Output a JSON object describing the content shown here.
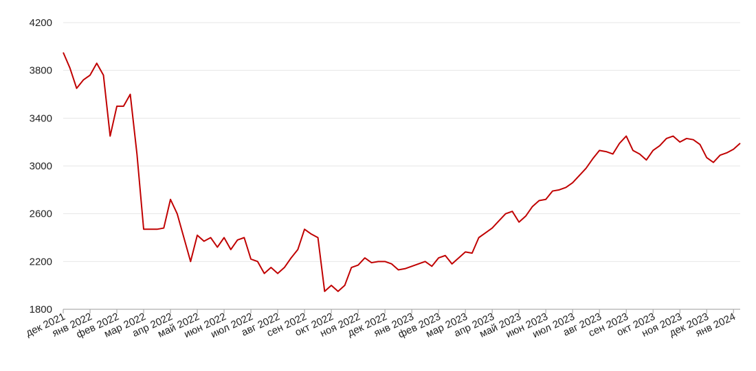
{
  "chart_data": {
    "type": "line",
    "categories": [
      "дек 2021",
      null,
      null,
      null,
      "янв 2022",
      null,
      null,
      null,
      "фев 2022",
      null,
      null,
      null,
      "мар 2022",
      null,
      null,
      null,
      "апр 2022",
      null,
      null,
      null,
      "май 2022",
      null,
      null,
      null,
      "июн 2022",
      null,
      null,
      null,
      "июл 2022",
      null,
      null,
      null,
      "авг 2022",
      null,
      null,
      null,
      "сен 2022",
      null,
      null,
      null,
      "окт 2022",
      null,
      null,
      null,
      "ноя 2022",
      null,
      null,
      null,
      "дек 2022",
      null,
      null,
      null,
      "янв 2023",
      null,
      null,
      null,
      "фев 2023",
      null,
      null,
      null,
      "мар 2023",
      null,
      null,
      null,
      "апр 2023",
      null,
      null,
      null,
      "май 2023",
      null,
      null,
      null,
      "июн 2023",
      null,
      null,
      null,
      "июл 2023",
      null,
      null,
      null,
      "авг 2023",
      null,
      null,
      null,
      "сен 2023",
      null,
      null,
      null,
      "окт 2023",
      null,
      null,
      null,
      "ноя 2023",
      null,
      null,
      null,
      "дек 2023",
      null,
      null,
      null,
      "янв 2024",
      null
    ],
    "series": [
      {
        "color": "#c00000",
        "values": [
          3950,
          3820,
          3650,
          3720,
          3760,
          3860,
          3760,
          3250,
          3500,
          3500,
          3600,
          3100,
          2470,
          2470,
          2470,
          2480,
          2720,
          2600,
          2400,
          2200,
          2420,
          2370,
          2400,
          2320,
          2400,
          2300,
          2380,
          2400,
          2220,
          2200,
          2100,
          2150,
          2100,
          2150,
          2230,
          2300,
          2470,
          2430,
          2400,
          1950,
          2000,
          1950,
          2000,
          2150,
          2170,
          2230,
          2190,
          2200,
          2200,
          2180,
          2130,
          2140,
          2160,
          2180,
          2200,
          2160,
          2230,
          2250,
          2180,
          2230,
          2280,
          2270,
          2400,
          2440,
          2480,
          2540,
          2600,
          2620,
          2530,
          2580,
          2660,
          2710,
          2720,
          2790,
          2800,
          2820,
          2860,
          2920,
          2980,
          3060,
          3130,
          3120,
          3100,
          3190,
          3250,
          3130,
          3100,
          3050,
          3130,
          3170,
          3230,
          3250,
          3200,
          3230,
          3220,
          3180,
          3070,
          3030,
          3090,
          3110,
          3140,
          3190
        ]
      }
    ],
    "ylim": [
      1800,
      4200
    ],
    "yticks": [
      1800,
      2200,
      2600,
      3000,
      3400,
      3800,
      4200
    ],
    "grid": true
  }
}
